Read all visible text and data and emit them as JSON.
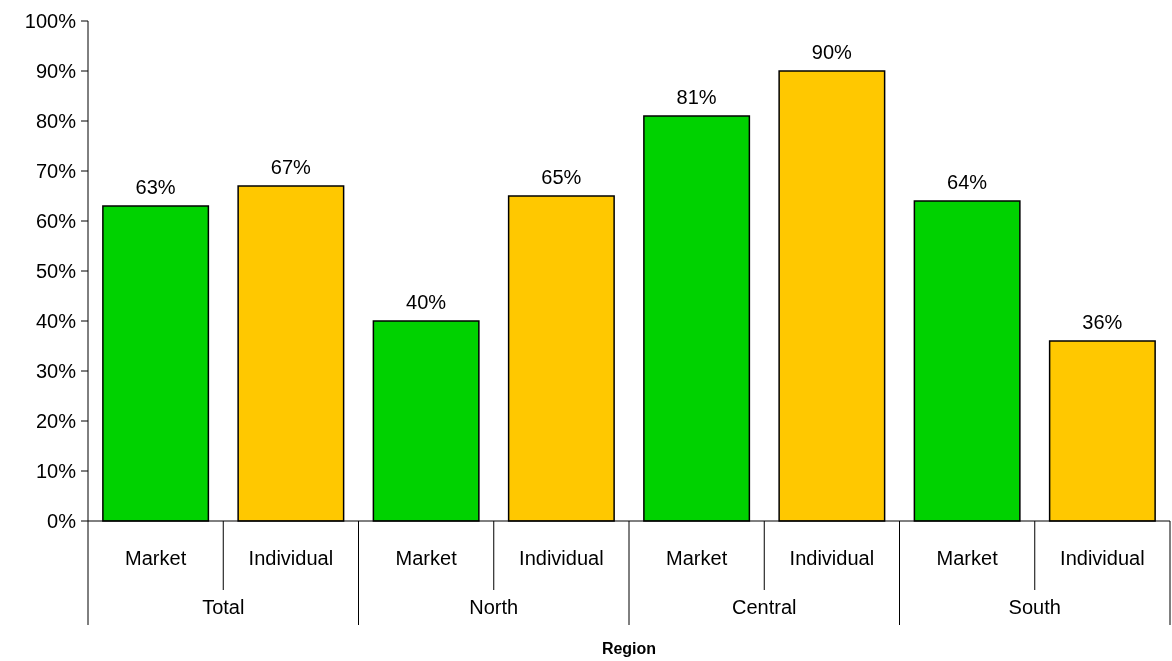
{
  "chart_data": {
    "type": "bar",
    "xlabel": "Region",
    "categories": [
      "Total",
      "North",
      "Central",
      "South"
    ],
    "series": [
      {
        "name": "Market",
        "color": "#00d200",
        "values": [
          63,
          40,
          81,
          64
        ],
        "value_labels": [
          "63%",
          "40%",
          "81%",
          "64%"
        ]
      },
      {
        "name": "Individual",
        "color": "#ffc800",
        "values": [
          67,
          65,
          90,
          36
        ],
        "value_labels": [
          "67%",
          "65%",
          "90%",
          "36%"
        ]
      }
    ],
    "ylim": [
      0,
      100
    ],
    "yticks": [
      {
        "value": 0,
        "label": "0%"
      },
      {
        "value": 10,
        "label": "10%"
      },
      {
        "value": 20,
        "label": "20%"
      },
      {
        "value": 30,
        "label": "30%"
      },
      {
        "value": 40,
        "label": "40%"
      },
      {
        "value": 50,
        "label": "50%"
      },
      {
        "value": 60,
        "label": "60%"
      },
      {
        "value": 70,
        "label": "70%"
      },
      {
        "value": 80,
        "label": "80%"
      },
      {
        "value": 90,
        "label": "90%"
      },
      {
        "value": 100,
        "label": "100%"
      }
    ],
    "grid": false,
    "legend": false
  }
}
